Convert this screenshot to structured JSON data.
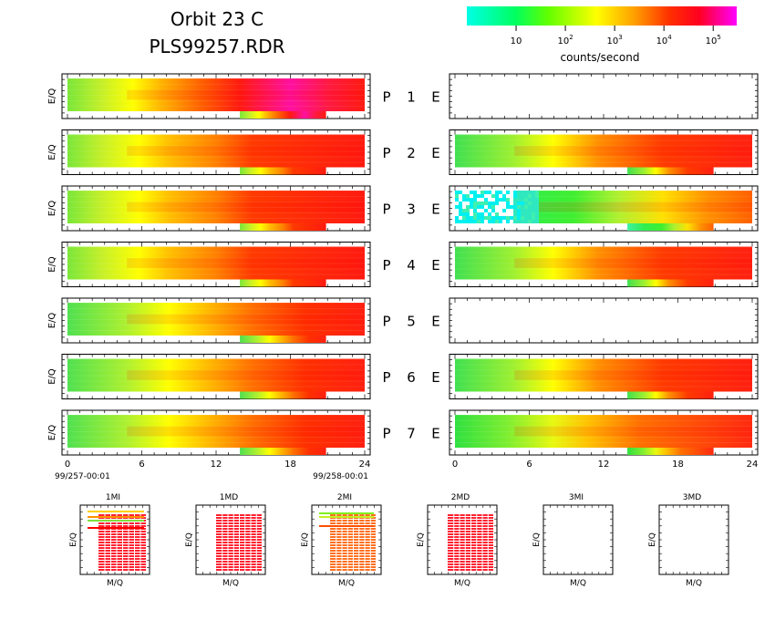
{
  "header": {
    "title_line1": "Orbit 23 C",
    "title_line2": "PLS99257.RDR"
  },
  "colorbar": {
    "ticks": [
      {
        "exp": "",
        "base": "10",
        "value": 10
      },
      {
        "exp": "2",
        "base": "10",
        "value": 100
      },
      {
        "exp": "3",
        "base": "10",
        "value": 1000
      },
      {
        "exp": "4",
        "base": "10",
        "value": 10000
      },
      {
        "exp": "5",
        "base": "10",
        "value": 100000
      }
    ],
    "label": "counts/second",
    "scale": "log",
    "range": [
      1,
      300000
    ],
    "colors": [
      "#00ffe6",
      "#00ff60",
      "#60ff00",
      "#ffff00",
      "#ffa000",
      "#ff3000",
      "#ff0020",
      "#ff00ff"
    ]
  },
  "axis_label_eq": "E/Q",
  "axis_label_mq": "M/Q",
  "x_axis": {
    "ticks": [
      "0",
      "6",
      "12",
      "18",
      "24"
    ],
    "range": [
      0,
      24
    ],
    "start_label": "99/257-00:01",
    "end_label": "99/258-00:01"
  },
  "chart_data": {
    "type": "heatmap",
    "x_unit": "hours",
    "rows": [
      {
        "p_label": "P",
        "p_num": "1",
        "e_label": "E",
        "left_has_data": true,
        "right_has_data": false
      },
      {
        "p_label": "P",
        "p_num": "2",
        "e_label": "E",
        "left_has_data": true,
        "right_has_data": true
      },
      {
        "p_label": "P",
        "p_num": "3",
        "e_label": "E",
        "left_has_data": true,
        "right_has_data": true
      },
      {
        "p_label": "P",
        "p_num": "4",
        "e_label": "E",
        "left_has_data": true,
        "right_has_data": true
      },
      {
        "p_label": "P",
        "p_num": "5",
        "e_label": "E",
        "left_has_data": true,
        "right_has_data": false
      },
      {
        "p_label": "P",
        "p_num": "6",
        "e_label": "E",
        "left_has_data": true,
        "right_has_data": true
      },
      {
        "p_label": "P",
        "p_num": "7",
        "e_label": "E",
        "left_has_data": true,
        "right_has_data": true
      }
    ],
    "mass_panels": [
      {
        "title": "1MI",
        "has_data": true
      },
      {
        "title": "1MD",
        "has_data": true
      },
      {
        "title": "2MI",
        "has_data": true
      },
      {
        "title": "2MD",
        "has_data": true
      },
      {
        "title": "3MI",
        "has_data": false
      },
      {
        "title": "3MD",
        "has_data": false
      }
    ]
  }
}
